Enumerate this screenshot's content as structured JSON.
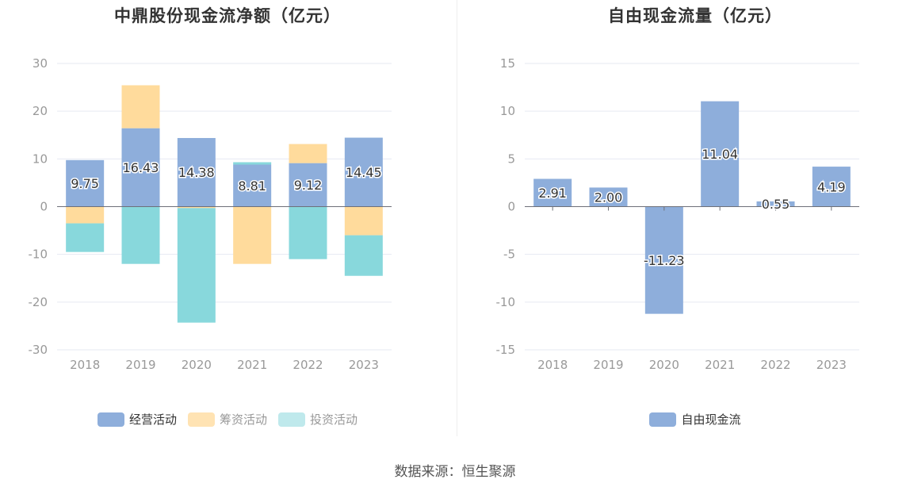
{
  "footer": {
    "source": "数据来源：恒生聚源"
  },
  "chart_data": [
    {
      "type": "bar",
      "stacked": true,
      "title": "中鼎股份现金流净额（亿元）",
      "categories": [
        "2018",
        "2019",
        "2020",
        "2021",
        "2022",
        "2023"
      ],
      "ylim": [
        -30,
        30
      ],
      "yticks": [
        30,
        20,
        10,
        0,
        -10,
        -20,
        -30
      ],
      "grid": true,
      "legend_position": "bottom",
      "series": [
        {
          "name": "经营活动",
          "color": "#8eaedb",
          "values": [
            9.75,
            16.43,
            14.38,
            8.81,
            9.12,
            14.45
          ],
          "labels": [
            "9.75",
            "16.43",
            "14.38",
            "8.81",
            "9.12",
            "14.45"
          ]
        },
        {
          "name": "筹资活动",
          "color": "#ffdb9c",
          "values": [
            -3.5,
            9.0,
            -0.3,
            -12.0,
            4.0,
            -6.0
          ]
        },
        {
          "name": "投资活动",
          "color": "#88d8dc",
          "values": [
            -6.0,
            -12.0,
            -24.0,
            0.5,
            -11.0,
            -8.5
          ]
        }
      ]
    },
    {
      "type": "bar",
      "title": "自由现金流量（亿元）",
      "categories": [
        "2018",
        "2019",
        "2020",
        "2021",
        "2022",
        "2023"
      ],
      "ylim": [
        -15,
        15
      ],
      "yticks": [
        15,
        10,
        5,
        0,
        -5,
        -10,
        -15
      ],
      "grid": true,
      "legend_position": "bottom",
      "series": [
        {
          "name": "自由现金流",
          "color": "#8eaedb",
          "values": [
            2.91,
            2.0,
            -11.23,
            11.04,
            0.55,
            4.19
          ],
          "labels": [
            "2.91",
            "2.00",
            "-11.23",
            "11.04",
            "0.55",
            "4.19"
          ]
        }
      ]
    }
  ]
}
